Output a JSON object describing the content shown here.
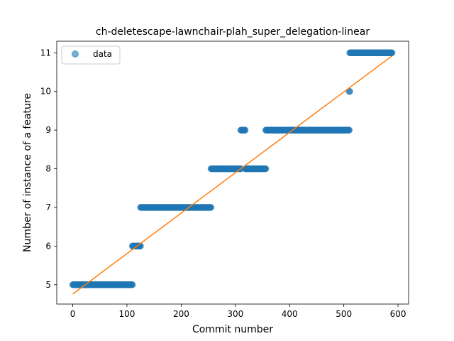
{
  "chart_data": {
    "type": "scatter",
    "title": "ch-deletescape-lawnchair-plah_super_delegation-linear",
    "xlabel": "Commit number",
    "ylabel": "Number of instance of a feature",
    "xlim": [
      -29.5,
      619.5
    ],
    "ylim": [
      4.5,
      11.3
    ],
    "xticks": [
      0,
      100,
      200,
      300,
      400,
      500,
      600
    ],
    "yticks": [
      5,
      6,
      7,
      8,
      9,
      10,
      11
    ],
    "legend": {
      "position": "top-left",
      "entries": [
        "data"
      ]
    },
    "grid": false,
    "series": [
      {
        "name": "data",
        "kind": "points",
        "color": "#1f77b4",
        "segments": [
          {
            "x_start": 0,
            "x_end": 110,
            "y": 5
          },
          {
            "x_start": 110,
            "x_end": 125,
            "y": 6
          },
          {
            "x_start": 125,
            "x_end": 255,
            "y": 7
          },
          {
            "x_start": 255,
            "x_end": 310,
            "y": 8
          },
          {
            "x_start": 310,
            "x_end": 318,
            "y": 9
          },
          {
            "x_start": 318,
            "x_end": 356,
            "y": 8
          },
          {
            "x_start": 356,
            "x_end": 510,
            "y": 9
          },
          {
            "x_start": 510,
            "x_end": 511,
            "y": 10
          },
          {
            "x_start": 511,
            "x_end": 589,
            "y": 11
          }
        ]
      },
      {
        "kind": "fit-line",
        "color": "#ff7f0e",
        "x": [
          0,
          589
        ],
        "y": [
          4.76,
          10.92
        ]
      }
    ]
  }
}
